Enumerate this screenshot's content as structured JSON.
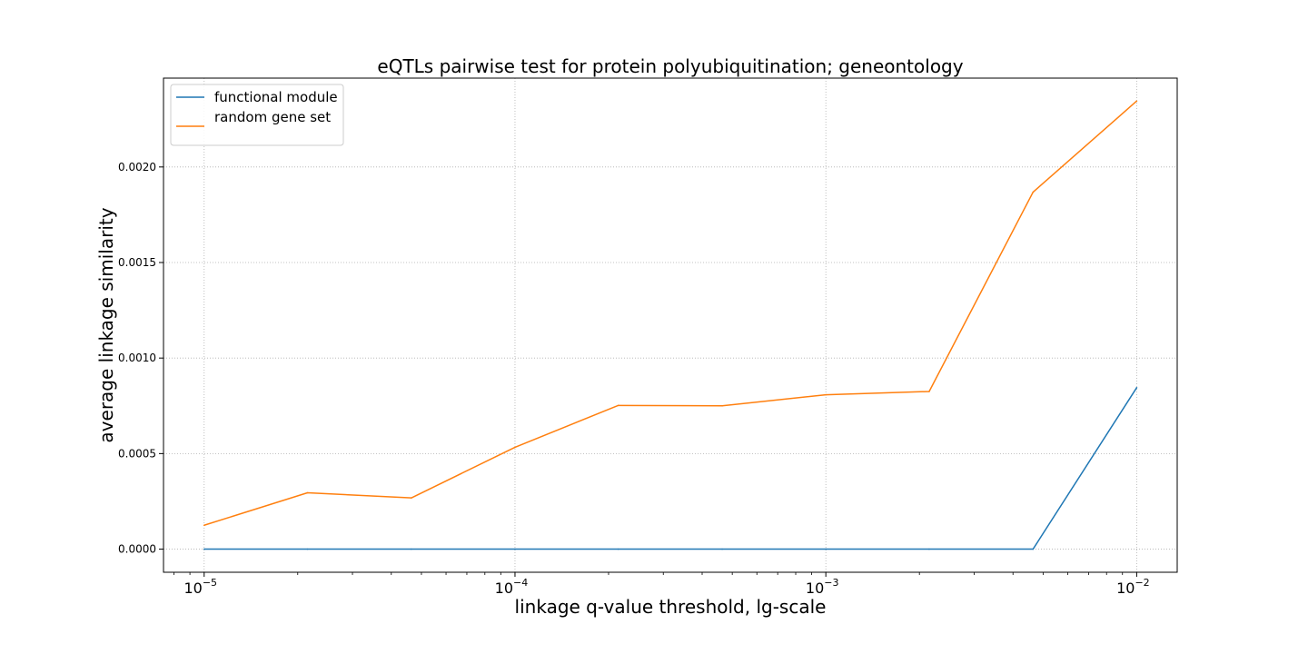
{
  "chart_data": {
    "type": "line",
    "title": "eQTLs pairwise test for protein polyubiquitination; geneontology",
    "xlabel": "linkage q-value threshold, lg-scale",
    "ylabel": "average linkage similarity",
    "xscale": "log",
    "xlim": [
      7.4e-06,
      0.0135
    ],
    "ylim": [
      -0.000121,
      0.002465
    ],
    "grid": true,
    "legend_position": "top-left",
    "x": [
      1e-05,
      2.15e-05,
      4.64e-05,
      0.0001,
      0.000215,
      0.000464,
      0.001,
      0.00215,
      0.00464,
      0.01
    ],
    "x_ticks": [
      {
        "value": 1e-05,
        "base": "10",
        "exp": "−5"
      },
      {
        "value": 0.0001,
        "base": "10",
        "exp": "−4"
      },
      {
        "value": 0.001,
        "base": "10",
        "exp": "−3"
      },
      {
        "value": 0.01,
        "base": "10",
        "exp": "−2"
      }
    ],
    "y_ticks": [
      {
        "value": 0.0,
        "label": "0.0000"
      },
      {
        "value": 0.0005,
        "label": "0.0005"
      },
      {
        "value": 0.001,
        "label": "0.0010"
      },
      {
        "value": 0.0015,
        "label": "0.0015"
      },
      {
        "value": 0.002,
        "label": "0.0020"
      }
    ],
    "series": [
      {
        "name": "functional module",
        "color": "#1f77b4",
        "values": [
          0.0,
          0.0,
          0.0,
          0.0,
          0.0,
          0.0,
          0.0,
          0.0,
          0.0,
          0.000845
        ]
      },
      {
        "name": "random gene set",
        "color": "#ff7f0e",
        "values": [
          0.000125,
          0.000295,
          0.000268,
          0.000533,
          0.000752,
          0.00075,
          0.000808,
          0.000825,
          0.001868,
          0.002345
        ]
      }
    ]
  }
}
